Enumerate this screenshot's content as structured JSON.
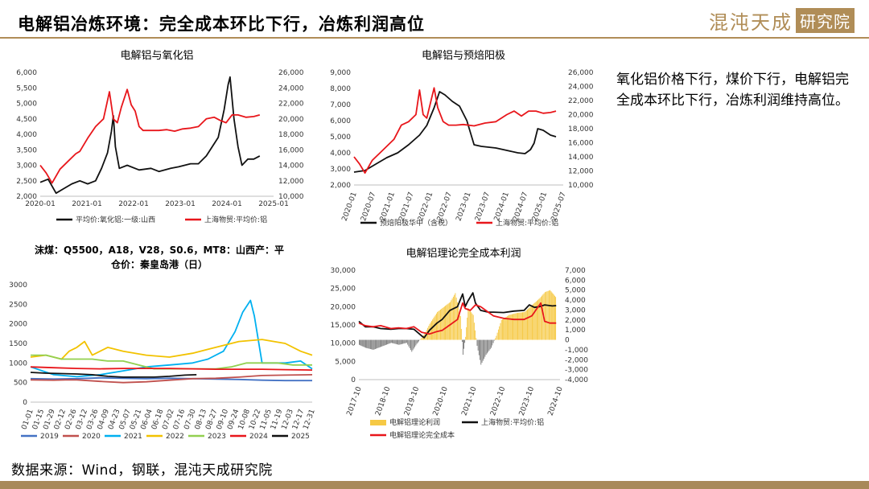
{
  "header": {
    "title": "电解铝冶炼环境：完全成本环比下行，冶炼利润高位",
    "logo_brand": "混沌天成",
    "logo_tag": "研究院"
  },
  "note": "氧化铝价格下行，煤价下行，电解铝完全成本环比下行，冶炼利润维持高位。",
  "source": "数据来源：Wind，钢联，混沌天成研究院",
  "colors": {
    "red": "#e8161b",
    "black": "#111111",
    "gold": "#b08d57"
  },
  "chart_data": [
    {
      "id": "c1",
      "type": "line",
      "title": "电解铝与氧化铝",
      "x_ticks": [
        "2020-01",
        "2021-01",
        "2022-01",
        "2023-01",
        "2024-01",
        "2025-01"
      ],
      "y_left_ticks": [
        "6,000",
        "5,500",
        "5,000",
        "4,500",
        "4,000",
        "3,500",
        "3,000",
        "2,500",
        "2,000"
      ],
      "y_right_ticks": [
        "26,000",
        "24,000",
        "22,000",
        "20,000",
        "18,000",
        "16,000",
        "14,000",
        "12,000",
        "10,000"
      ],
      "ylim_left": [
        2000,
        6000
      ],
      "ylim_right": [
        10000,
        26000
      ],
      "xlim": [
        2020.0,
        2025.9
      ],
      "series": [
        {
          "name": "平均价:氧化铝:一级:山西",
          "axis": "left",
          "color": "#111111",
          "x": [
            2020.0,
            2020.2,
            2020.4,
            2020.6,
            2020.8,
            2021.0,
            2021.2,
            2021.4,
            2021.55,
            2021.7,
            2021.8,
            2021.85,
            2021.9,
            2022.0,
            2022.2,
            2022.5,
            2022.8,
            2023.0,
            2023.3,
            2023.5,
            2023.8,
            2024.0,
            2024.2,
            2024.35,
            2024.5,
            2024.65,
            2024.75,
            2024.8,
            2024.9,
            2025.0,
            2025.1,
            2025.25,
            2025.4,
            2025.55
          ],
          "y": [
            2450,
            2550,
            2100,
            2250,
            2400,
            2500,
            2400,
            2500,
            2900,
            3400,
            4100,
            4600,
            3600,
            2900,
            3000,
            2850,
            2900,
            2800,
            2900,
            2950,
            3050,
            3050,
            3300,
            3600,
            3900,
            4800,
            5600,
            5850,
            4500,
            3600,
            3000,
            3200,
            3200,
            3300
          ]
        },
        {
          "name": "上海物贸:平均价:铝",
          "axis": "right",
          "color": "#e8161b",
          "x": [
            2020.0,
            2020.15,
            2020.3,
            2020.5,
            2020.7,
            2020.9,
            2021.0,
            2021.2,
            2021.4,
            2021.6,
            2021.75,
            2021.85,
            2021.95,
            2022.05,
            2022.2,
            2022.3,
            2022.4,
            2022.5,
            2022.6,
            2022.8,
            2023.0,
            2023.2,
            2023.4,
            2023.6,
            2023.8,
            2024.0,
            2024.2,
            2024.4,
            2024.55,
            2024.7,
            2024.85,
            2025.0,
            2025.2,
            2025.4,
            2025.55
          ],
          "y": [
            14000,
            13000,
            11700,
            13500,
            14500,
            15500,
            15800,
            17500,
            19000,
            20000,
            23500,
            20000,
            19500,
            21500,
            23800,
            21800,
            21000,
            19000,
            18500,
            18500,
            18500,
            18600,
            18400,
            18700,
            18800,
            19000,
            20000,
            20200,
            19800,
            19500,
            20500,
            20500,
            20200,
            20300,
            20500
          ]
        }
      ],
      "legend": [
        "平均价:氧化铝:一级:山西",
        "上海物贸:平均价:铝"
      ]
    },
    {
      "id": "c2",
      "type": "line",
      "title": "电解铝与预焙阳极",
      "x_ticks": [
        "2020-01",
        "2020-07",
        "2021-01",
        "2021-07",
        "2022-01",
        "2022-07",
        "2023-01",
        "2023-07",
        "2024-01",
        "2024-07",
        "2025-01",
        "2025-07"
      ],
      "y_left_ticks": [
        "9,000",
        "8,000",
        "7,000",
        "6,000",
        "5,000",
        "4,000",
        "3,000",
        "2,000"
      ],
      "y_right_ticks": [
        "26,000",
        "24,000",
        "22,000",
        "20,000",
        "18,000",
        "16,000",
        "14,000",
        "12,000",
        "10,000"
      ],
      "ylim_left": [
        2000,
        9000
      ],
      "ylim_right": [
        10000,
        26000
      ],
      "xlim": [
        2020.0,
        2025.75
      ],
      "series": [
        {
          "name": "预焙阳极华中（含税）",
          "axis": "left",
          "color": "#111111",
          "x": [
            2020.0,
            2020.3,
            2020.6,
            2020.9,
            2021.2,
            2021.5,
            2021.8,
            2022.0,
            2022.2,
            2022.35,
            2022.5,
            2022.7,
            2022.9,
            2023.1,
            2023.3,
            2023.5,
            2023.7,
            2023.9,
            2024.1,
            2024.3,
            2024.5,
            2024.7,
            2024.85,
            2024.95,
            2025.05,
            2025.2,
            2025.4,
            2025.55
          ],
          "y": [
            2800,
            2900,
            3300,
            3700,
            4000,
            4500,
            5100,
            5700,
            6800,
            7800,
            7600,
            7200,
            6900,
            6000,
            4500,
            4400,
            4350,
            4300,
            4200,
            4100,
            4000,
            3950,
            4200,
            4600,
            5500,
            5400,
            5100,
            5000
          ]
        },
        {
          "name": "上海物贸:平均价:铝",
          "axis": "right",
          "color": "#e8161b",
          "x": [
            2020.0,
            2020.15,
            2020.3,
            2020.5,
            2020.7,
            2020.9,
            2021.1,
            2021.3,
            2021.5,
            2021.7,
            2021.8,
            2021.9,
            2022.0,
            2022.2,
            2022.3,
            2022.45,
            2022.6,
            2022.8,
            2023.0,
            2023.3,
            2023.6,
            2023.9,
            2024.2,
            2024.4,
            2024.6,
            2024.8,
            2025.0,
            2025.2,
            2025.4,
            2025.55
          ],
          "y": [
            14000,
            13000,
            11700,
            13500,
            14500,
            15500,
            16500,
            18500,
            19000,
            20000,
            23500,
            20000,
            19500,
            23800,
            21000,
            19000,
            18500,
            18500,
            18600,
            18400,
            18800,
            19000,
            20000,
            20500,
            19800,
            20500,
            20500,
            20200,
            20300,
            20500
          ]
        }
      ],
      "legend": [
        "预焙阳极华中（含税）",
        "上海物贸:平均价:铝"
      ]
    },
    {
      "id": "c3",
      "type": "line",
      "title": "沫煤：Q5500，A18，V28，S0.6，MT8：山西产：平仓价：秦皇岛港（日）",
      "x_ticks": [
        "01-01",
        "01-15",
        "01-29",
        "02-12",
        "02-26",
        "03-12",
        "03-26",
        "04-09",
        "04-23",
        "05-07",
        "05-21",
        "06-04",
        "06-18",
        "07-02",
        "07-16",
        "07-30",
        "08-13",
        "08-27",
        "09-10",
        "09-24",
        "10-08",
        "10-22",
        "11-05",
        "11-19",
        "12-03",
        "12-17",
        "12-31"
      ],
      "y_ticks": [
        "3000",
        "2500",
        "2000",
        "1500",
        "1000",
        "500",
        "0"
      ],
      "ylim": [
        0,
        3000
      ],
      "xlim": [
        0,
        365
      ],
      "series": [
        {
          "name": "2019",
          "color": "#4472c4",
          "x": [
            0,
            30,
            60,
            90,
            120,
            150,
            180,
            210,
            240,
            270,
            300,
            330,
            365
          ],
          "y": [
            600,
            590,
            600,
            620,
            610,
            600,
            610,
            600,
            590,
            580,
            560,
            550,
            550
          ]
        },
        {
          "name": "2020",
          "color": "#c0504d",
          "x": [
            0,
            30,
            45,
            60,
            90,
            120,
            150,
            180,
            210,
            240,
            270,
            300,
            330,
            365
          ],
          "y": [
            570,
            560,
            570,
            570,
            530,
            500,
            520,
            560,
            600,
            610,
            640,
            680,
            690,
            700
          ]
        },
        {
          "name": "2021",
          "color": "#00b0f0",
          "x": [
            0,
            30,
            60,
            90,
            120,
            150,
            180,
            210,
            230,
            250,
            265,
            275,
            285,
            290,
            300,
            330,
            350,
            365
          ],
          "y": [
            900,
            700,
            650,
            700,
            800,
            900,
            950,
            1000,
            1100,
            1300,
            1800,
            2300,
            2600,
            2200,
            1000,
            1000,
            1050,
            850
          ]
        },
        {
          "name": "2022",
          "color": "#f2c200",
          "x": [
            0,
            20,
            40,
            50,
            60,
            70,
            80,
            100,
            120,
            150,
            180,
            210,
            240,
            270,
            300,
            330,
            350,
            365
          ],
          "y": [
            1150,
            1200,
            1100,
            1300,
            1400,
            1550,
            1200,
            1400,
            1300,
            1200,
            1150,
            1250,
            1400,
            1550,
            1600,
            1500,
            1300,
            1200
          ]
        },
        {
          "name": "2023",
          "color": "#92d050",
          "x": [
            0,
            20,
            40,
            60,
            80,
            100,
            120,
            140,
            160,
            180,
            200,
            220,
            240,
            260,
            280,
            300,
            320,
            340,
            365
          ],
          "y": [
            1200,
            1200,
            1100,
            1100,
            1100,
            1050,
            1050,
            950,
            850,
            850,
            850,
            850,
            850,
            900,
            1000,
            1000,
            1000,
            950,
            950
          ]
        },
        {
          "name": "2024",
          "color": "#e8161b",
          "x": [
            0,
            30,
            60,
            90,
            120,
            150,
            180,
            210,
            240,
            270,
            300,
            330,
            365
          ],
          "y": [
            900,
            880,
            860,
            850,
            860,
            860,
            860,
            850,
            840,
            840,
            840,
            830,
            820
          ]
        },
        {
          "name": "2025",
          "color": "#111111",
          "x": [
            0,
            20,
            40,
            60,
            80,
            100,
            120,
            140,
            160,
            180,
            200,
            215
          ],
          "y": [
            760,
            740,
            730,
            720,
            700,
            660,
            640,
            640,
            640,
            660,
            690,
            700
          ]
        }
      ],
      "legend": [
        "2019",
        "2020",
        "2021",
        "2022",
        "2023",
        "2024",
        "2025"
      ]
    },
    {
      "id": "c4",
      "type": "line",
      "title": "电解铝理论完全成本利润",
      "x_ticks": [
        "2017-10",
        "2018-10",
        "2019-10",
        "2020-10",
        "2021-10",
        "2022-10",
        "2023-10",
        "2024-10"
      ],
      "y_left_ticks": [
        "30,000",
        "25,000",
        "20,000",
        "15,000",
        "10,000",
        "5,000",
        "0"
      ],
      "y_right_ticks": [
        "7,000",
        "6,000",
        "5,000",
        "4,000",
        "3,000",
        "2,000",
        "1,000",
        "0",
        "-1,000",
        "-2,000",
        "-3,000",
        "-4,000"
      ],
      "ylim_left": [
        0,
        30000
      ],
      "ylim_right": [
        -4000,
        7000
      ],
      "xlim": [
        2017.75,
        2025.6
      ],
      "series": [
        {
          "name": "电解铝理论利润",
          "axis": "right",
          "type": "area",
          "color": "#f6c945",
          "x": [
            2017.75,
            2018.0,
            2018.3,
            2018.6,
            2019.0,
            2019.3,
            2019.6,
            2019.8,
            2020.0,
            2020.3,
            2020.5,
            2020.8,
            2021.0,
            2021.3,
            2021.5,
            2021.7,
            2021.8,
            2021.9,
            2022.0,
            2022.2,
            2022.35,
            2022.5,
            2022.7,
            2022.9,
            2023.1,
            2023.3,
            2023.6,
            2023.9,
            2024.2,
            2024.5,
            2024.8,
            2025.0,
            2025.2,
            2025.45
          ],
          "y": [
            -500,
            -800,
            -1000,
            -700,
            -300,
            -500,
            -300,
            -1200,
            -400,
            600,
            1600,
            2800,
            3200,
            3800,
            4700,
            2400,
            -1500,
            300,
            3200,
            2500,
            -600,
            -2500,
            -1500,
            -800,
            400,
            2000,
            2500,
            2700,
            2800,
            3500,
            4200,
            4800,
            5000,
            4200
          ]
        },
        {
          "name": "上海物贸:平均价:铝",
          "axis": "left",
          "color": "#111111",
          "x": [
            2017.75,
            2018.0,
            2018.3,
            2018.6,
            2019.0,
            2019.3,
            2019.6,
            2019.9,
            2020.2,
            2020.3,
            2020.5,
            2020.8,
            2021.0,
            2021.3,
            2021.6,
            2021.8,
            2021.9,
            2022.0,
            2022.2,
            2022.3,
            2022.5,
            2022.8,
            2023.0,
            2023.4,
            2023.8,
            2024.2,
            2024.4,
            2024.6,
            2024.8,
            2025.0,
            2025.3,
            2025.45
          ],
          "y": [
            16000,
            14500,
            14500,
            14000,
            13800,
            14000,
            14000,
            13800,
            12000,
            11500,
            13500,
            15500,
            16500,
            19000,
            20000,
            23500,
            20000,
            21500,
            23800,
            21000,
            19000,
            18500,
            18500,
            18400,
            18800,
            19000,
            20500,
            19800,
            20000,
            20500,
            20200,
            20300
          ]
        },
        {
          "name": "电解铝理论完全成本",
          "axis": "left",
          "color": "#e8161b",
          "x": [
            2017.75,
            2018.0,
            2018.3,
            2018.6,
            2019.0,
            2019.3,
            2019.6,
            2019.9,
            2020.2,
            2020.5,
            2020.8,
            2021.0,
            2021.3,
            2021.6,
            2021.8,
            2021.9,
            2022.1,
            2022.3,
            2022.5,
            2022.8,
            2023.0,
            2023.4,
            2023.8,
            2024.2,
            2024.5,
            2024.7,
            2024.85,
            2025.0,
            2025.2,
            2025.45
          ],
          "y": [
            15500,
            14800,
            14500,
            14800,
            14000,
            14200,
            14000,
            14500,
            13000,
            12500,
            13200,
            13500,
            15000,
            16500,
            21000,
            19500,
            19000,
            20500,
            20000,
            18500,
            17500,
            16800,
            16500,
            16500,
            17500,
            19500,
            21000,
            16000,
            15500,
            15500
          ]
        }
      ],
      "legend": [
        "电解铝理论利润",
        "上海物贸:平均价:铝",
        "电解铝理论完全成本"
      ]
    }
  ]
}
